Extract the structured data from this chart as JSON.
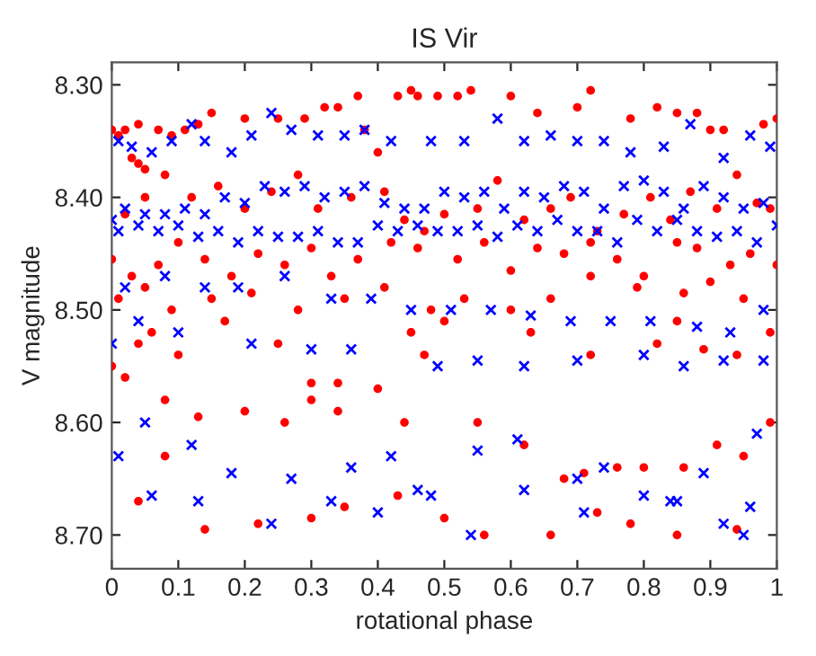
{
  "chart_data": {
    "type": "scatter",
    "title": "IS Vir",
    "xlabel": "rotational phase",
    "ylabel": "V magnitude",
    "xlim": [
      0,
      1
    ],
    "ylim": [
      8.73,
      8.28
    ],
    "xticks": [
      0,
      0.1,
      0.2,
      0.3,
      0.4,
      0.5,
      0.6,
      0.7,
      0.8,
      0.9,
      1
    ],
    "yticks": [
      {
        "value": 8.3,
        "label": "8.30"
      },
      {
        "value": 8.4,
        "label": "8.40"
      },
      {
        "value": 8.5,
        "label": "8.50"
      },
      {
        "value": 8.6,
        "label": "8.60"
      },
      {
        "value": 8.7,
        "label": "8.70"
      }
    ],
    "grid": false,
    "series": [
      {
        "color": "#ff0000",
        "marker": "circle",
        "x": [
          0.0,
          0.01,
          0.02,
          0.03,
          0.04,
          0.04,
          0.05,
          0.07,
          0.09,
          0.11,
          0.13,
          0.15,
          0.2,
          0.25,
          0.29,
          0.32,
          0.34,
          0.37,
          0.38,
          0.4,
          0.43,
          0.45,
          0.46,
          0.49,
          0.52,
          0.54,
          0.6,
          0.64,
          0.7,
          0.72,
          0.78,
          0.82,
          0.85,
          0.88,
          0.9,
          0.92,
          0.98,
          1.0,
          0.02,
          0.05,
          0.08,
          0.12,
          0.16,
          0.2,
          0.24,
          0.28,
          0.31,
          0.36,
          0.41,
          0.44,
          0.47,
          0.5,
          0.55,
          0.58,
          0.62,
          0.66,
          0.69,
          0.73,
          0.77,
          0.81,
          0.84,
          0.87,
          0.91,
          0.94,
          0.97,
          0.99,
          0.0,
          0.03,
          0.07,
          0.1,
          0.14,
          0.18,
          0.22,
          0.26,
          0.3,
          0.33,
          0.37,
          0.42,
          0.46,
          0.52,
          0.56,
          0.6,
          0.64,
          0.68,
          0.72,
          0.76,
          0.8,
          0.85,
          0.88,
          0.93,
          0.96,
          1.0,
          0.01,
          0.05,
          0.09,
          0.15,
          0.21,
          0.28,
          0.35,
          0.41,
          0.48,
          0.53,
          0.6,
          0.66,
          0.72,
          0.79,
          0.86,
          0.9,
          0.95,
          0.0,
          0.04,
          0.06,
          0.1,
          0.17,
          0.25,
          0.3,
          0.34,
          0.45,
          0.47,
          0.5,
          0.63,
          0.72,
          0.82,
          0.85,
          0.89,
          0.94,
          0.99,
          0.02,
          0.08,
          0.13,
          0.2,
          0.26,
          0.3,
          0.34,
          0.4,
          0.44,
          0.55,
          0.62,
          0.68,
          0.71,
          0.76,
          0.8,
          0.86,
          0.91,
          0.95,
          0.99,
          0.04,
          0.08,
          0.14,
          0.22,
          0.3,
          0.35,
          0.43,
          0.56,
          0.73,
          0.78,
          0.85,
          0.94,
          0.5,
          0.66
        ],
        "values": [
          8.34,
          8.345,
          8.34,
          8.365,
          8.37,
          8.335,
          8.375,
          8.34,
          8.345,
          8.34,
          8.335,
          8.325,
          8.33,
          8.33,
          8.33,
          8.32,
          8.32,
          8.31,
          8.34,
          8.36,
          8.31,
          8.305,
          8.31,
          8.31,
          8.31,
          8.305,
          8.31,
          8.325,
          8.32,
          8.305,
          8.33,
          8.32,
          8.325,
          8.325,
          8.34,
          8.34,
          8.335,
          8.33,
          8.415,
          8.4,
          8.38,
          8.4,
          8.39,
          8.41,
          8.395,
          8.38,
          8.41,
          8.4,
          8.395,
          8.42,
          8.43,
          8.415,
          8.41,
          8.385,
          8.42,
          8.41,
          8.4,
          8.43,
          8.415,
          8.4,
          8.42,
          8.395,
          8.41,
          8.38,
          8.405,
          8.41,
          8.455,
          8.47,
          8.46,
          8.44,
          8.455,
          8.47,
          8.45,
          8.46,
          8.445,
          8.47,
          8.455,
          8.44,
          8.445,
          8.455,
          8.44,
          8.465,
          8.445,
          8.45,
          8.44,
          8.455,
          8.47,
          8.44,
          8.445,
          8.46,
          8.45,
          8.46,
          8.49,
          8.48,
          8.5,
          8.49,
          8.485,
          8.5,
          8.49,
          8.48,
          8.5,
          8.49,
          8.5,
          8.49,
          8.47,
          8.48,
          8.485,
          8.475,
          8.49,
          8.55,
          8.53,
          8.52,
          8.54,
          8.51,
          8.53,
          8.565,
          8.565,
          8.52,
          8.54,
          8.51,
          8.52,
          8.54,
          8.53,
          8.51,
          8.535,
          8.54,
          8.52,
          8.56,
          8.58,
          8.595,
          8.59,
          8.6,
          8.58,
          8.59,
          8.57,
          8.6,
          8.6,
          8.62,
          8.65,
          8.645,
          8.64,
          8.64,
          8.64,
          8.62,
          8.63,
          8.6,
          8.67,
          8.63,
          8.695,
          8.69,
          8.685,
          8.675,
          8.665,
          8.7,
          8.68,
          8.69,
          8.7,
          8.695,
          8.685,
          8.7
        ]
      },
      {
        "color": "#0000ff",
        "marker": "cross",
        "x": [
          0.01,
          0.03,
          0.06,
          0.09,
          0.12,
          0.14,
          0.18,
          0.21,
          0.24,
          0.27,
          0.31,
          0.35,
          0.38,
          0.42,
          0.48,
          0.53,
          0.58,
          0.62,
          0.66,
          0.7,
          0.74,
          0.78,
          0.83,
          0.87,
          0.92,
          0.96,
          0.99,
          0.0,
          0.02,
          0.05,
          0.08,
          0.11,
          0.14,
          0.17,
          0.2,
          0.23,
          0.26,
          0.29,
          0.32,
          0.35,
          0.38,
          0.41,
          0.44,
          0.47,
          0.5,
          0.53,
          0.56,
          0.59,
          0.62,
          0.65,
          0.68,
          0.71,
          0.74,
          0.77,
          0.8,
          0.83,
          0.86,
          0.89,
          0.92,
          0.95,
          0.98,
          0.01,
          0.04,
          0.07,
          0.1,
          0.13,
          0.16,
          0.19,
          0.22,
          0.25,
          0.28,
          0.31,
          0.34,
          0.37,
          0.4,
          0.43,
          0.46,
          0.49,
          0.52,
          0.55,
          0.58,
          0.61,
          0.64,
          0.67,
          0.7,
          0.73,
          0.76,
          0.79,
          0.82,
          0.85,
          0.88,
          0.91,
          0.94,
          0.97,
          1.0,
          0.02,
          0.08,
          0.14,
          0.19,
          0.26,
          0.33,
          0.39,
          0.45,
          0.51,
          0.57,
          0.63,
          0.69,
          0.75,
          0.81,
          0.88,
          0.93,
          0.98,
          0.0,
          0.04,
          0.1,
          0.21,
          0.3,
          0.36,
          0.49,
          0.55,
          0.62,
          0.7,
          0.8,
          0.86,
          0.92,
          0.98,
          0.05,
          0.12,
          0.18,
          0.27,
          0.36,
          0.42,
          0.48,
          0.55,
          0.61,
          0.7,
          0.74,
          0.84,
          0.89,
          0.97,
          0.01,
          0.06,
          0.13,
          0.24,
          0.33,
          0.4,
          0.46,
          0.54,
          0.62,
          0.71,
          0.8,
          0.92,
          0.96,
          0.85,
          0.95
        ],
        "values": [
          8.35,
          8.355,
          8.36,
          8.35,
          8.335,
          8.35,
          8.36,
          8.345,
          8.325,
          8.34,
          8.345,
          8.345,
          8.34,
          8.35,
          8.35,
          8.35,
          8.33,
          8.35,
          8.345,
          8.35,
          8.35,
          8.36,
          8.355,
          8.335,
          8.365,
          8.345,
          8.355,
          8.42,
          8.41,
          8.415,
          8.415,
          8.41,
          8.415,
          8.4,
          8.405,
          8.39,
          8.395,
          8.39,
          8.4,
          8.395,
          8.39,
          8.405,
          8.41,
          8.41,
          8.395,
          8.4,
          8.395,
          8.41,
          8.395,
          8.4,
          8.39,
          8.395,
          8.41,
          8.39,
          8.385,
          8.395,
          8.41,
          8.39,
          8.4,
          8.41,
          8.405,
          8.43,
          8.425,
          8.43,
          8.425,
          8.435,
          8.43,
          8.44,
          8.43,
          8.435,
          8.435,
          8.43,
          8.44,
          8.44,
          8.425,
          8.43,
          8.425,
          8.43,
          8.43,
          8.425,
          8.435,
          8.425,
          8.43,
          8.42,
          8.43,
          8.43,
          8.44,
          8.42,
          8.43,
          8.42,
          8.43,
          8.435,
          8.43,
          8.44,
          8.425,
          8.48,
          8.47,
          8.48,
          8.48,
          8.47,
          8.49,
          8.49,
          8.5,
          8.5,
          8.5,
          8.505,
          8.51,
          8.51,
          8.51,
          8.515,
          8.52,
          8.5,
          8.53,
          8.51,
          8.52,
          8.53,
          8.535,
          8.535,
          8.55,
          8.545,
          8.55,
          8.545,
          8.54,
          8.55,
          8.545,
          8.545,
          8.6,
          8.62,
          8.645,
          8.65,
          8.64,
          8.63,
          8.665,
          8.625,
          8.615,
          8.65,
          8.64,
          8.67,
          8.645,
          8.61,
          8.63,
          8.665,
          8.67,
          8.69,
          8.67,
          8.68,
          8.66,
          8.7,
          8.66,
          8.68,
          8.665,
          8.69,
          8.675,
          8.67,
          8.7
        ]
      }
    ]
  }
}
